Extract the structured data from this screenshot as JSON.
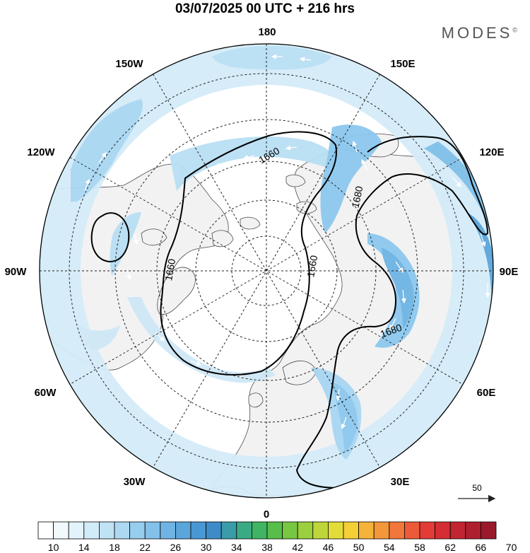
{
  "title": "03/07/2025  00 UTC  + 216 hrs",
  "brand": "MODES",
  "brand_mark": "©",
  "map": {
    "projection": "north-polar-stereographic",
    "longitude_labels": {
      "top": "180",
      "top_right": "150E",
      "upper_right": "120E",
      "right": "90E",
      "lower_right": "60E",
      "bottom_right": "30E",
      "bottom": "0",
      "bottom_left": "30W",
      "lower_left": "60W",
      "left": "90W",
      "upper_left": "120W",
      "top_left": "150W"
    },
    "contour_labels": [
      "1660",
      "1680",
      "1660",
      "1680",
      "1660",
      "1680"
    ],
    "reference_vector": {
      "label": "50"
    }
  },
  "colorbar": {
    "levels": [
      10,
      12,
      14,
      16,
      18,
      20,
      22,
      24,
      26,
      28,
      30,
      32,
      34,
      36,
      38,
      40,
      42,
      44,
      46,
      48,
      50,
      52,
      54,
      56,
      58,
      60,
      62,
      64,
      66,
      68,
      70
    ],
    "tick_labels": [
      "10",
      "14",
      "18",
      "22",
      "26",
      "30",
      "34",
      "38",
      "42",
      "46",
      "50",
      "54",
      "58",
      "62",
      "66",
      "70"
    ],
    "colors": [
      "#ffffff",
      "#f1f9fd",
      "#e3f3fb",
      "#d2ebf8",
      "#bfe2f5",
      "#acd8f1",
      "#97cdee",
      "#83c1ea",
      "#6fb4e4",
      "#5aa5dc",
      "#4a98d3",
      "#3f8bc7",
      "#3a9ca8",
      "#3aaa85",
      "#3fb462",
      "#58be4a",
      "#78c743",
      "#9bcf3e",
      "#bfd63a",
      "#e2dc38",
      "#f4cf36",
      "#f5b33a",
      "#f4963a",
      "#f1773a",
      "#ec5a39",
      "#e33c36",
      "#d42e34",
      "#c22532",
      "#ae1f30",
      "#9a1a2c"
    ]
  },
  "colors": {
    "land": "#f2f2f2",
    "jet_light": "#cfe8f7",
    "jet_mid": "#8cc8ee",
    "jet_strong": "#5aa5dc",
    "coast": "#333333"
  }
}
